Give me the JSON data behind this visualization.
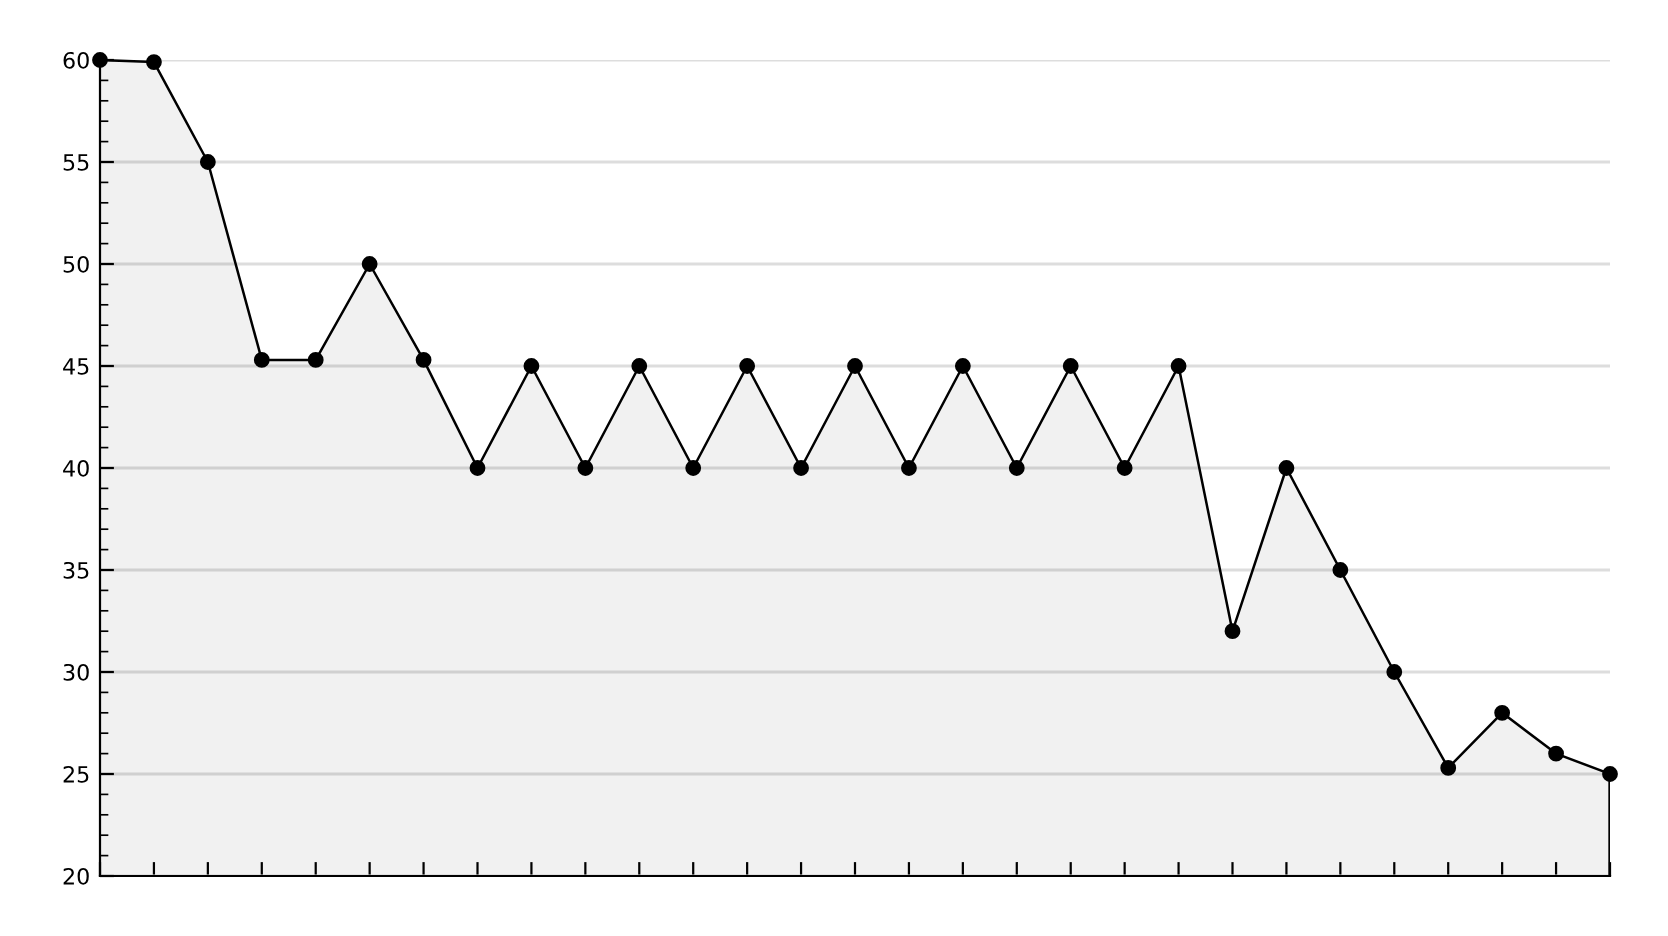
{
  "chart_data": {
    "type": "area",
    "categories": [
      null,
      null,
      null,
      null,
      null,
      null,
      null,
      null,
      null,
      null,
      null,
      null,
      null,
      null,
      null,
      null,
      null,
      null,
      null,
      null,
      null,
      null,
      null,
      null,
      null,
      null,
      null,
      null,
      null
    ],
    "series": [
      {
        "color": "#000000",
        "values": [
          60,
          59.9,
          55,
          45.3,
          45.3,
          50,
          45.3,
          40,
          45,
          40,
          45,
          40,
          45,
          40,
          45,
          40,
          45,
          40,
          45,
          40,
          45,
          32,
          40,
          35,
          30,
          25.3,
          28,
          26,
          25
        ]
      }
    ],
    "ylim": [
      20,
      60
    ],
    "yticks": [
      20,
      25,
      30,
      35,
      40,
      45,
      50,
      55,
      60
    ],
    "grid": "y",
    "marker": "circle",
    "line_style": "solid",
    "tick_labels": "y"
  }
}
